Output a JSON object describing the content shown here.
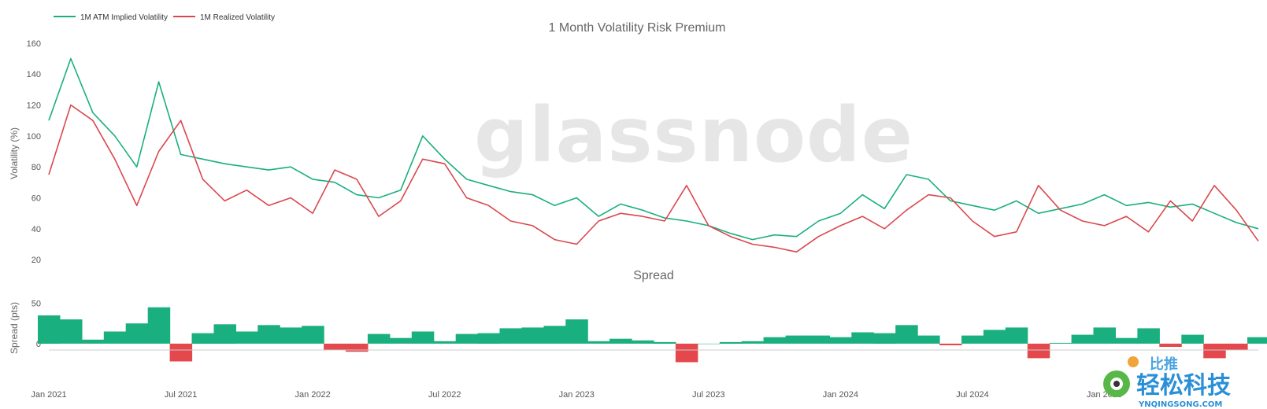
{
  "chart_data": [
    {
      "type": "line",
      "title": "1 Month Volatility Risk Premium",
      "ylabel": "Volatility (%)",
      "xlabel": "",
      "ylim": [
        15,
        165
      ],
      "yticks": [
        "20",
        "40",
        "60",
        "80",
        "100",
        "120",
        "140",
        "160"
      ],
      "xticks": [
        "Jan 2021",
        "Jul 2021",
        "Jan 2022",
        "Jul 2022",
        "Jan 2023",
        "Jul 2023",
        "Jan 2024",
        "Jul 2024",
        "Jan 2025"
      ],
      "grid": false,
      "legend_position": "top-left",
      "x": [
        "2021-01",
        "2021-02",
        "2021-03",
        "2021-04",
        "2021-05",
        "2021-06",
        "2021-07",
        "2021-08",
        "2021-09",
        "2021-10",
        "2021-11",
        "2021-12",
        "2022-01",
        "2022-02",
        "2022-03",
        "2022-04",
        "2022-05",
        "2022-06",
        "2022-07",
        "2022-08",
        "2022-09",
        "2022-10",
        "2022-11",
        "2022-12",
        "2023-01",
        "2023-02",
        "2023-03",
        "2023-04",
        "2023-05",
        "2023-06",
        "2023-07",
        "2023-08",
        "2023-09",
        "2023-10",
        "2023-11",
        "2023-12",
        "2024-01",
        "2024-02",
        "2024-03",
        "2024-04",
        "2024-05",
        "2024-06",
        "2024-07",
        "2024-08",
        "2024-09",
        "2024-10",
        "2024-11",
        "2024-12",
        "2025-01",
        "2025-02",
        "2025-03",
        "2025-04",
        "2025-05",
        "2025-06",
        "2025-07",
        "2025-08"
      ],
      "series": [
        {
          "name": "1M ATM Implied Volatility",
          "color": "#1aaf7e",
          "values": [
            110,
            150,
            115,
            100,
            80,
            135,
            88,
            85,
            82,
            80,
            78,
            80,
            72,
            70,
            62,
            60,
            65,
            100,
            85,
            72,
            68,
            64,
            62,
            55,
            60,
            48,
            56,
            52,
            47,
            45,
            42,
            37,
            33,
            36,
            35,
            45,
            50,
            62,
            53,
            75,
            72,
            58,
            55,
            52,
            58,
            50,
            53,
            56,
            62,
            55,
            57,
            54,
            56,
            50,
            44,
            40
          ]
        },
        {
          "name": "1M Realized Volatility",
          "color": "#d9484e",
          "values": [
            75,
            120,
            110,
            85,
            55,
            90,
            110,
            72,
            58,
            65,
            55,
            60,
            50,
            78,
            72,
            48,
            58,
            85,
            82,
            60,
            55,
            45,
            42,
            33,
            30,
            45,
            50,
            48,
            45,
            68,
            42,
            35,
            30,
            28,
            25,
            35,
            42,
            48,
            40,
            52,
            62,
            60,
            45,
            35,
            38,
            68,
            52,
            45,
            42,
            48,
            38,
            58,
            45,
            68,
            52,
            32
          ]
        }
      ]
    },
    {
      "type": "area",
      "title": "Spread",
      "ylabel": "Spread (pts)",
      "xlabel": "",
      "ylim": [
        -40,
        70
      ],
      "yticks": [
        "0",
        "50"
      ],
      "positive_color": "#1aaf7e",
      "negative_color": "#e4474c",
      "series": [
        {
          "name": "",
          "values": [
            35,
            30,
            5,
            15,
            25,
            45,
            -22,
            13,
            24,
            15,
            23,
            20,
            22,
            -8,
            -10,
            12,
            7,
            15,
            3,
            12,
            13,
            19,
            20,
            22,
            30,
            3,
            6,
            4,
            2,
            -23,
            0,
            2,
            3,
            8,
            10,
            10,
            8,
            14,
            13,
            23,
            10,
            -2,
            10,
            17,
            20,
            -18,
            1,
            11,
            20,
            7,
            19,
            -4,
            11,
            -18,
            -8,
            8
          ]
        }
      ]
    }
  ],
  "watermark": "glassnode",
  "stamp": {
    "top_text": "比推",
    "main_text": "轻松科技",
    "url_text": "YNQINGSONG.COM"
  }
}
